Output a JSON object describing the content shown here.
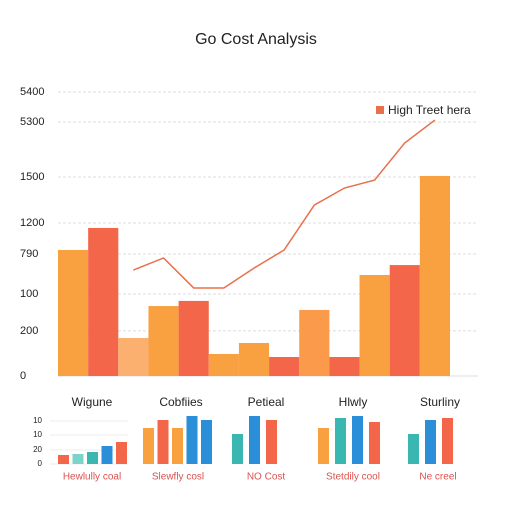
{
  "chart_data": {
    "type": "bar",
    "title": "Go Cost Analysis",
    "ylim": [
      0,
      1600
    ],
    "yticks": [
      0,
      {
        "value": 254,
        "label": "200"
      },
      {
        "value": 462,
        "label": "100"
      },
      {
        "value": 687,
        "label": "790"
      },
      {
        "value": 862,
        "label": "1200"
      },
      {
        "value": 1121,
        "label": "1500"
      },
      {
        "value": 1431,
        "label": "5300"
      },
      {
        "value": 1600,
        "label": "5400"
      }
    ],
    "grid": true,
    "legend": "top-right",
    "categories": [
      null,
      null,
      null,
      null,
      null,
      null,
      null,
      null,
      null,
      null,
      null,
      null,
      null
    ],
    "series": [
      {
        "type": "bar",
        "colors": [
          "#f9a040",
          "#f4664a",
          "#fbb070",
          "#f9a040",
          "#f4664a",
          "#f9a040",
          "#f9a040",
          "#f4664a",
          "#fa9a4a",
          "#f4664a",
          "#f9a040",
          "#f4664a",
          "#f9a040"
        ],
        "values": [
          710,
          834,
          214,
          394,
          423,
          124,
          186,
          107,
          372,
          107,
          569,
          625,
          1127
        ]
      },
      {
        "type": "line",
        "name": "High Treet hera",
        "color": "#e8704a",
        "values": [
          null,
          null,
          597,
          665,
          496,
          496,
          608,
          710,
          963,
          1059,
          1104,
          1313,
          1442
        ]
      }
    ],
    "group_labels": [
      "Wigune",
      "Cobfiies",
      "Petieal",
      "Hlwly",
      "Sturliny"
    ],
    "mini_ylim": [
      0,
      50
    ],
    "mini_yticks": [
      0,
      {
        "value": 14,
        "label": "20"
      },
      {
        "value": 29,
        "label": "10"
      },
      {
        "value": 43,
        "label": "10"
      }
    ],
    "mini_charts": [
      {
        "label": "Hewlully coal",
        "values": [
          9,
          10,
          12,
          18,
          22
        ],
        "colors": [
          "#f4664a",
          "#7dd3c8",
          "#3ab7b0",
          "#2a8fd8",
          "#f4664a"
        ]
      },
      {
        "label": "Slewfly cosl",
        "values": [
          36,
          44,
          36,
          48,
          44
        ],
        "colors": [
          "#f9a040",
          "#f4664a",
          "#f9a040",
          "#2a8fd8",
          "#2a8fd8"
        ]
      },
      {
        "label": "NO Cost",
        "values": [
          30,
          48,
          44
        ],
        "colors": [
          "#3ab7b0",
          "#2a8fd8",
          "#f4664a"
        ]
      },
      {
        "label": "Stetdily cool",
        "values": [
          36,
          46,
          48,
          42
        ],
        "colors": [
          "#f9a040",
          "#3ab7b0",
          "#2a8fd8",
          "#f4664a"
        ]
      },
      {
        "label": "Ne creel",
        "values": [
          30,
          44,
          46
        ],
        "colors": [
          "#3ab7b0",
          "#2a8fd8",
          "#f4664a"
        ]
      }
    ]
  }
}
